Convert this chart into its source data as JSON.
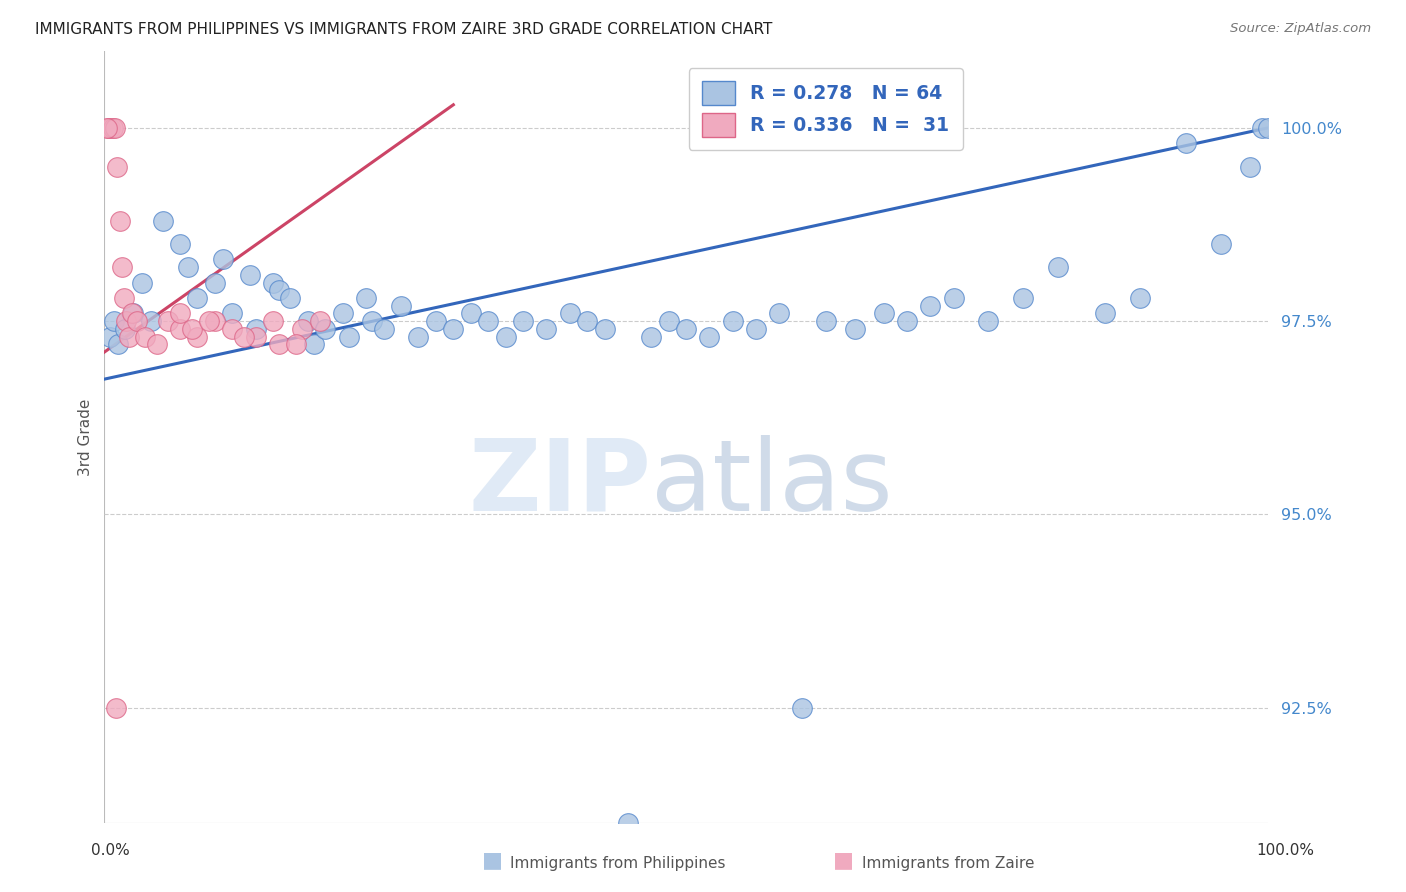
{
  "title": "IMMIGRANTS FROM PHILIPPINES VS IMMIGRANTS FROM ZAIRE 3RD GRADE CORRELATION CHART",
  "source": "Source: ZipAtlas.com",
  "ylabel": "3rd Grade",
  "ytick_values": [
    92.5,
    95.0,
    97.5,
    100.0
  ],
  "ymin": 91.0,
  "ymax": 101.0,
  "xmin": 0.0,
  "xmax": 100.0,
  "blue_color": "#aac4e2",
  "pink_color": "#f0aabf",
  "blue_edge_color": "#5588cc",
  "pink_edge_color": "#dd6688",
  "blue_line_color": "#3366bb",
  "pink_line_color": "#cc4466",
  "watermark_zip": "ZIP",
  "watermark_atlas": "atlas",
  "legend_blue_r": "0.278",
  "legend_blue_n": "64",
  "legend_pink_r": "0.336",
  "legend_pink_n": "31",
  "blue_x": [
    0.5,
    0.8,
    1.2,
    1.8,
    2.5,
    3.2,
    4.0,
    5.0,
    6.5,
    7.2,
    8.0,
    9.5,
    10.2,
    11.0,
    12.5,
    13.0,
    14.5,
    15.0,
    16.0,
    17.5,
    18.0,
    19.0,
    20.5,
    21.0,
    22.5,
    23.0,
    24.0,
    25.5,
    27.0,
    28.5,
    30.0,
    31.5,
    33.0,
    34.5,
    36.0,
    38.0,
    40.0,
    41.5,
    43.0,
    45.0,
    47.0,
    48.5,
    50.0,
    52.0,
    54.0,
    56.0,
    58.0,
    60.0,
    62.0,
    64.5,
    67.0,
    69.0,
    71.0,
    73.0,
    76.0,
    79.0,
    82.0,
    86.0,
    89.0,
    93.0,
    96.0,
    98.5,
    99.5,
    100.0
  ],
  "blue_y": [
    97.3,
    97.5,
    97.2,
    97.4,
    97.6,
    98.0,
    97.5,
    98.8,
    98.5,
    98.2,
    97.8,
    98.0,
    98.3,
    97.6,
    98.1,
    97.4,
    98.0,
    97.9,
    97.8,
    97.5,
    97.2,
    97.4,
    97.6,
    97.3,
    97.8,
    97.5,
    97.4,
    97.7,
    97.3,
    97.5,
    97.4,
    97.6,
    97.5,
    97.3,
    97.5,
    97.4,
    97.6,
    97.5,
    97.4,
    91.0,
    97.3,
    97.5,
    97.4,
    97.3,
    97.5,
    97.4,
    97.6,
    92.5,
    97.5,
    97.4,
    97.6,
    97.5,
    97.7,
    97.8,
    97.5,
    97.8,
    98.2,
    97.6,
    97.8,
    99.8,
    98.5,
    99.5,
    100.0,
    100.0
  ],
  "pink_x": [
    0.3,
    0.5,
    0.7,
    0.9,
    1.1,
    1.3,
    1.5,
    1.7,
    1.9,
    2.1,
    2.4,
    2.8,
    3.5,
    4.5,
    5.5,
    6.5,
    8.0,
    9.5,
    11.0,
    13.0,
    15.0,
    17.0,
    18.5,
    6.5,
    7.5,
    9.0,
    12.0,
    14.5,
    16.5,
    1.0,
    0.2
  ],
  "pink_y": [
    100.0,
    100.0,
    100.0,
    100.0,
    99.5,
    98.8,
    98.2,
    97.8,
    97.5,
    97.3,
    97.6,
    97.5,
    97.3,
    97.2,
    97.5,
    97.4,
    97.3,
    97.5,
    97.4,
    97.3,
    97.2,
    97.4,
    97.5,
    97.6,
    97.4,
    97.5,
    97.3,
    97.5,
    97.2,
    92.5,
    100.0
  ],
  "blue_line_x0": 0.0,
  "blue_line_x1": 100.0,
  "blue_line_y0": 96.75,
  "blue_line_y1": 100.0,
  "pink_line_x0": 0.0,
  "pink_line_x1": 30.0,
  "pink_line_y0": 97.1,
  "pink_line_y1": 100.3
}
